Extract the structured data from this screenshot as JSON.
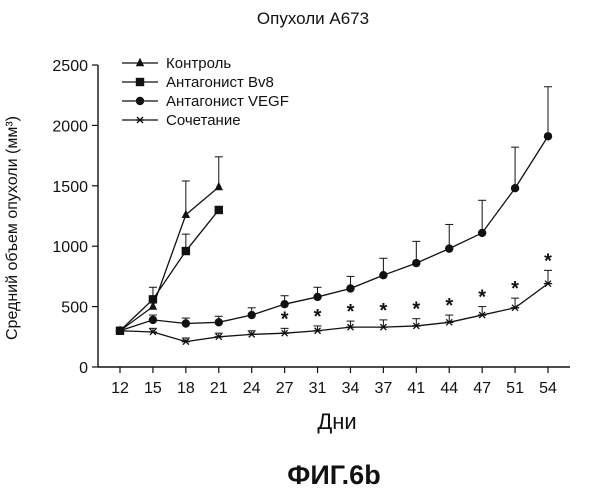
{
  "figure_label": "ФИГ.6b",
  "chart_data": {
    "type": "line",
    "title": "Опухоли А673",
    "xlabel": "Дни",
    "ylabel": "Средний объем опухоли (мм³)",
    "ylim": [
      0,
      2500
    ],
    "yticks": [
      0,
      500,
      1000,
      1500,
      2000,
      2500
    ],
    "x_ticks": [
      12,
      15,
      18,
      21,
      24,
      27,
      31,
      34,
      37,
      41,
      44,
      47,
      51,
      54
    ],
    "legend_position": "top-left",
    "grid": false,
    "series": [
      {
        "name": "Контроль",
        "marker": "triangle",
        "x": [
          12,
          15,
          18,
          21
        ],
        "values": [
          300,
          500,
          1260,
          1490
        ],
        "error": [
          0,
          80,
          280,
          250
        ]
      },
      {
        "name": "Антагонист Bv8",
        "marker": "square",
        "x": [
          12,
          15,
          18,
          21
        ],
        "values": [
          300,
          560,
          960,
          1300
        ],
        "error": [
          0,
          100,
          140,
          0
        ]
      },
      {
        "name": "Антагонист VEGF",
        "marker": "circle",
        "x": [
          12,
          15,
          18,
          21,
          24,
          27,
          31,
          34,
          37,
          41,
          44,
          47,
          51,
          54
        ],
        "values": [
          300,
          390,
          360,
          370,
          430,
          520,
          580,
          650,
          760,
          860,
          980,
          1110,
          1480,
          1910
        ],
        "error": [
          0,
          40,
          45,
          50,
          60,
          70,
          80,
          100,
          140,
          180,
          200,
          270,
          340,
          410
        ]
      },
      {
        "name": "Сочетание",
        "marker": "asterisk",
        "x": [
          12,
          15,
          18,
          21,
          24,
          27,
          31,
          34,
          37,
          41,
          44,
          47,
          51,
          54
        ],
        "values": [
          300,
          290,
          210,
          250,
          270,
          280,
          300,
          330,
          330,
          340,
          370,
          430,
          490,
          690
        ],
        "error": [
          0,
          30,
          30,
          30,
          30,
          40,
          40,
          50,
          60,
          60,
          60,
          70,
          80,
          110
        ],
        "significance": [
          null,
          null,
          null,
          null,
          null,
          "*",
          "*",
          "*",
          "*",
          "*",
          "*",
          "*",
          "*",
          "*"
        ]
      }
    ]
  }
}
